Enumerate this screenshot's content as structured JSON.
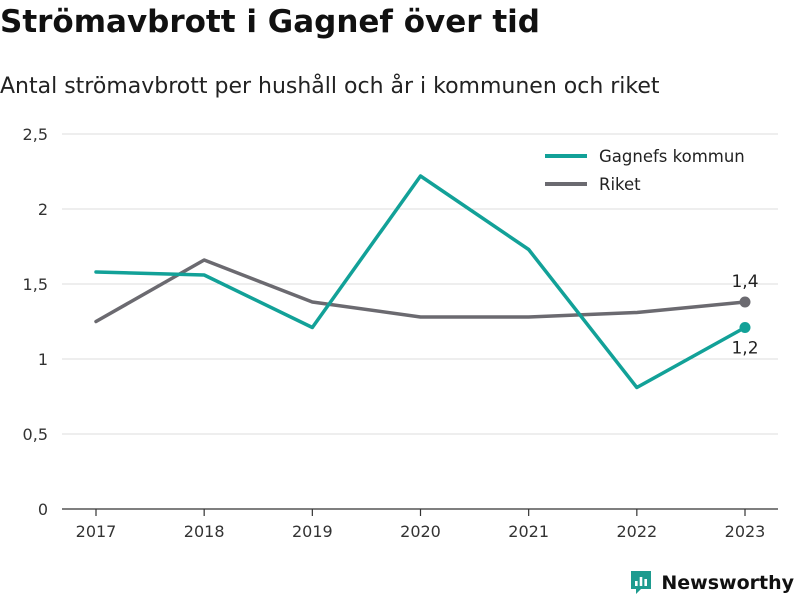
{
  "chart_data": {
    "type": "line",
    "title": "Strömavbrott i Gagnef över tid",
    "subtitle": "Antal strömavbrott per hushåll och år i kommunen och riket",
    "categories": [
      "2017",
      "2018",
      "2019",
      "2020",
      "2021",
      "2022",
      "2023"
    ],
    "yticks": [
      "0",
      "0,5",
      "1",
      "1,5",
      "2",
      "2,5"
    ],
    "ylim": [
      0,
      2.5
    ],
    "grid": true,
    "legend_position": "top-right",
    "series": [
      {
        "name": "Gagnefs kommun",
        "color": "#12a198",
        "values": [
          1.58,
          1.56,
          1.21,
          2.22,
          1.73,
          0.81,
          1.21
        ],
        "end_label": "1,2"
      },
      {
        "name": "Riket",
        "color": "#6b6a70",
        "values": [
          1.25,
          1.66,
          1.38,
          1.28,
          1.28,
          1.31,
          1.38
        ],
        "end_label": "1,4"
      }
    ]
  },
  "branding": {
    "name": "Newsworthy",
    "color": "#1e9b8f",
    "icon": "newsworthy-logo-icon"
  }
}
